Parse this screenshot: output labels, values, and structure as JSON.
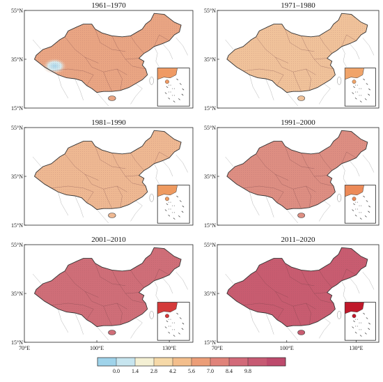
{
  "panels": [
    {
      "title": "1961–1970",
      "fill": "#e9a583",
      "south_sea_fill": "#ef9a64",
      "has_cold_spot": true
    },
    {
      "title": "1971–1980",
      "fill": "#f0c29a",
      "south_sea_fill": "#f0a46a",
      "has_cold_spot": false
    },
    {
      "title": "1981–1990",
      "fill": "#eeb892",
      "south_sea_fill": "#ee9a60",
      "has_cold_spot": false
    },
    {
      "title": "1991–2000",
      "fill": "#dd8e82",
      "south_sea_fill": "#ec8a58",
      "has_cold_spot": false
    },
    {
      "title": "2001–2010",
      "fill": "#cf6e78",
      "south_sea_fill": "#d43a3a",
      "has_cold_spot": false
    },
    {
      "title": "2011–2020",
      "fill": "#c85c70",
      "south_sea_fill": "#c0182a",
      "has_cold_spot": false
    }
  ],
  "lat_labels": [
    "55°N",
    "35°N",
    "15°N"
  ],
  "lon_labels": [
    "70°E",
    "100°E",
    "130°E"
  ],
  "colorbar": {
    "ticks": [
      "0.0",
      "1.4",
      "2.8",
      "4.2",
      "5.6",
      "7.0",
      "8.4",
      "9.8"
    ],
    "colors": [
      "#9fd3ea",
      "#c7e5ef",
      "#f4f0d4",
      "#f6d9a8",
      "#f3be8c",
      "#ec9e78",
      "#e0837a",
      "#d26a79",
      "#c75a73",
      "#bd4a6c"
    ]
  }
}
